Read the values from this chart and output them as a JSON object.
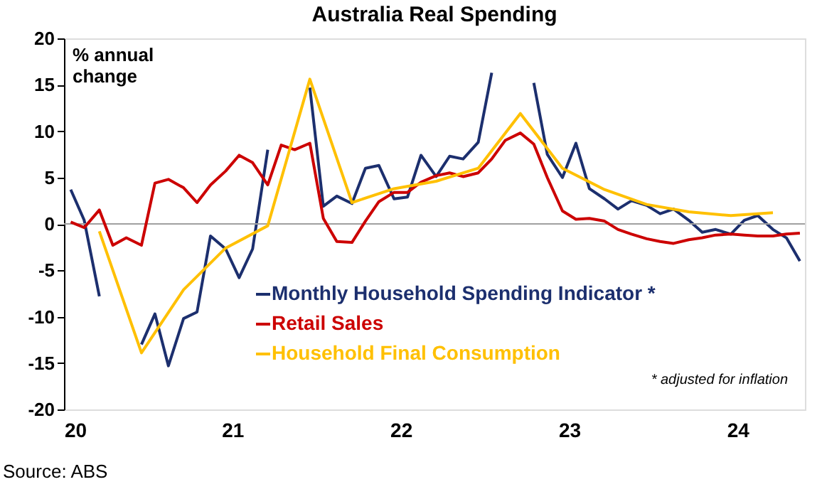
{
  "chart_data": {
    "type": "line",
    "title": "Australia Real Spending",
    "ylabel": "% annual\nchange",
    "xlim": [
      2020,
      2024.4
    ],
    "xticks": [
      {
        "value": 2020,
        "label": "20"
      },
      {
        "value": 2021,
        "label": "21"
      },
      {
        "value": 2022,
        "label": "22"
      },
      {
        "value": 2023,
        "label": "23"
      },
      {
        "value": 2024,
        "label": "24"
      }
    ],
    "ylim": [
      -20,
      20
    ],
    "yticks": [
      -20,
      -15,
      -10,
      -5,
      0,
      5,
      10,
      15,
      20
    ],
    "series": [
      {
        "name": "Monthly Household Spending Indicator *",
        "color": "#1c2f6e",
        "x": [
          2020.04,
          2020.12,
          2020.21,
          2020.29,
          2020.37,
          2020.46,
          2020.54,
          2020.62,
          2020.71,
          2020.79,
          2020.87,
          2020.96,
          2021.04,
          2021.12,
          2021.21,
          2021.29,
          2021.37,
          2021.46,
          2021.54,
          2021.62,
          2021.71,
          2021.79,
          2021.87,
          2021.96,
          2022.04,
          2022.12,
          2022.21,
          2022.29,
          2022.37,
          2022.46,
          2022.54,
          2022.62,
          2022.71,
          2022.79,
          2022.87,
          2022.96,
          2023.04,
          2023.12,
          2023.21,
          2023.29,
          2023.37,
          2023.46,
          2023.54,
          2023.62,
          2023.71,
          2023.79,
          2023.87,
          2023.96,
          2024.04,
          2024.12,
          2024.21,
          2024.29,
          2024.37
        ],
        "values": [
          3.7,
          0.4,
          -7.8,
          null,
          null,
          -13,
          -9.7,
          -15.3,
          -10.2,
          -9.5,
          -1.3,
          -2.7,
          -5.8,
          -2.7,
          8,
          null,
          null,
          14.7,
          1.9,
          3,
          2.2,
          6,
          6.3,
          2.7,
          2.9,
          7.4,
          5.1,
          7.3,
          7,
          8.8,
          16.3,
          null,
          null,
          15.2,
          7.5,
          5,
          8.7,
          3.8,
          2.7,
          1.6,
          2.5,
          2,
          1.1,
          1.6,
          0.4,
          -0.9,
          -0.6,
          -1.1,
          0.4,
          0.9,
          -0.6,
          -1.5,
          -4
        ]
      },
      {
        "name": "Retail Sales",
        "color": "#cc0000",
        "x": [
          2020.04,
          2020.12,
          2020.21,
          2020.29,
          2020.37,
          2020.46,
          2020.54,
          2020.62,
          2020.71,
          2020.79,
          2020.87,
          2020.96,
          2021.04,
          2021.12,
          2021.21,
          2021.29,
          2021.37,
          2021.46,
          2021.54,
          2021.62,
          2021.71,
          2021.79,
          2021.87,
          2021.96,
          2022.04,
          2022.12,
          2022.21,
          2022.29,
          2022.37,
          2022.46,
          2022.54,
          2022.62,
          2022.71,
          2022.79,
          2022.87,
          2022.96,
          2023.04,
          2023.12,
          2023.21,
          2023.29,
          2023.37,
          2023.46,
          2023.54,
          2023.62,
          2023.71,
          2023.79,
          2023.87,
          2023.96,
          2024.04,
          2024.12,
          2024.21,
          2024.29,
          2024.37
        ],
        "values": [
          0.2,
          -0.4,
          1.5,
          -2.3,
          -1.5,
          -2.3,
          4.4,
          4.8,
          3.9,
          2.3,
          4.2,
          5.7,
          7.4,
          6.6,
          4.2,
          8.5,
          8,
          8.7,
          0.6,
          -1.9,
          -2,
          0.3,
          2.4,
          3.4,
          3.4,
          4.5,
          5.2,
          5.5,
          5.1,
          5.5,
          7,
          9,
          9.8,
          8.6,
          5,
          1.4,
          0.5,
          0.6,
          0.3,
          -0.6,
          -1.1,
          -1.6,
          -1.9,
          -2.1,
          -1.7,
          -1.5,
          -1.2,
          -1.1,
          -1.2,
          -1.3,
          -1.3,
          -1.1,
          -1
        ]
      },
      {
        "name": "Household Final Consumption",
        "color": "#ffc000",
        "x": [
          2020.21,
          2020.46,
          2020.71,
          2020.96,
          2021.21,
          2021.46,
          2021.71,
          2021.96,
          2022.21,
          2022.46,
          2022.71,
          2022.96,
          2023.21,
          2023.46,
          2023.71,
          2023.96,
          2024.21
        ],
        "values": [
          -0.8,
          -13.9,
          -7.1,
          -2.6,
          -0.2,
          15.6,
          2.3,
          3.8,
          4.6,
          6,
          11.9,
          6,
          3.7,
          2.1,
          1.3,
          0.9,
          1.2
        ]
      }
    ],
    "ref_lines": [
      {
        "axis": "y",
        "value": 0,
        "color": "#a0a0a0"
      }
    ],
    "legend": "bottom",
    "grid": false,
    "annotations": [
      "* adjusted for inflation",
      "Source: ABS"
    ]
  }
}
